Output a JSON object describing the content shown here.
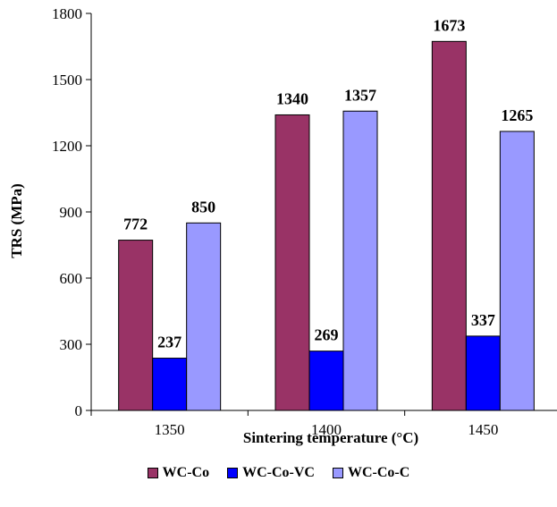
{
  "chart_data": {
    "type": "bar",
    "categories": [
      "1350",
      "1400",
      "1450"
    ],
    "series": [
      {
        "name": "WC-Co",
        "values": [
          772,
          1340,
          1673
        ],
        "color": "#993366"
      },
      {
        "name": "WC-Co-VC",
        "values": [
          237,
          269,
          337
        ],
        "color": "#0000ff"
      },
      {
        "name": "WC-Co-C",
        "values": [
          850,
          1357,
          1265
        ],
        "color": "#9999ff"
      }
    ],
    "xlabel": "Sintering temperature (°C)",
    "ylabel": "TRS (MPa)",
    "ylim": [
      0,
      1800
    ],
    "yticks": [
      0,
      300,
      600,
      900,
      1200,
      1500,
      1800
    ],
    "grid": false,
    "legend_position": "bottom"
  }
}
